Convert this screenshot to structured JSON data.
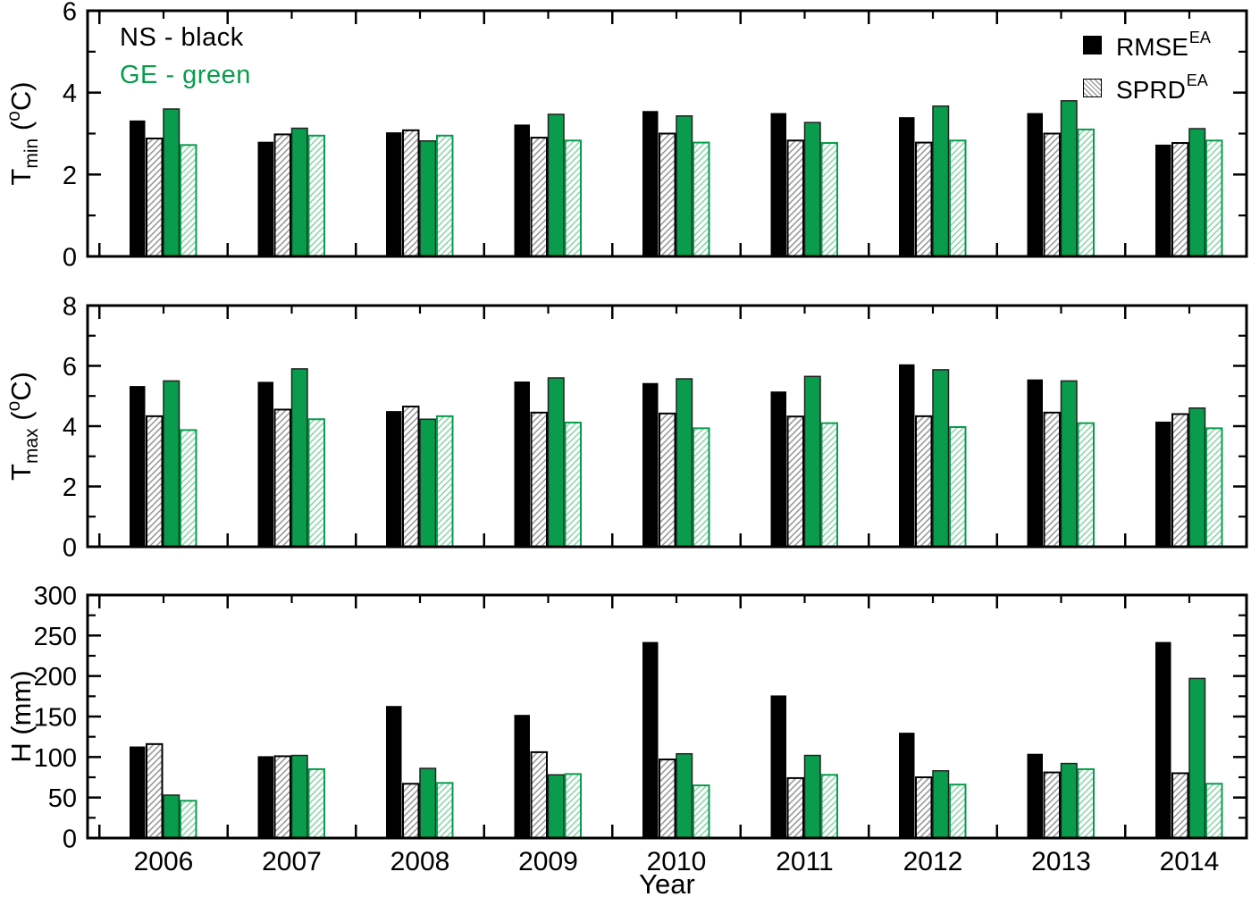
{
  "figure": {
    "background": "#ffffff"
  },
  "annotations": [
    {
      "id": "ns",
      "text": "NS - black",
      "color": "#000000"
    },
    {
      "id": "ge",
      "text": "GE - green",
      "color": "#089c4c"
    }
  ],
  "legend": {
    "position": "top-right",
    "entries": [
      {
        "label": "RMSE",
        "superscript": "EA",
        "swatch": "black-solid-square"
      },
      {
        "label": "SPRD",
        "superscript": "EA",
        "swatch": "hatched-square"
      }
    ]
  },
  "xlabel": "Year",
  "colors": {
    "ns_solid": "#000000",
    "ge_solid": "#089c4c",
    "ns_hatch_line": "#9a9a9a",
    "ge_hatch_line": "#8fd4ad",
    "axis": "#000000"
  },
  "chart_data": [
    {
      "type": "bar",
      "panel": "Tmin",
      "ylabel_parts": [
        {
          "text": "T"
        },
        {
          "text": "min",
          "script": "sub"
        },
        {
          "text": " ("
        },
        {
          "text": "o",
          "script": "sup"
        },
        {
          "text": "C)"
        }
      ],
      "ylim": [
        0,
        6
      ],
      "yticks": [
        0,
        2,
        4,
        6
      ],
      "y_minor_step": 1,
      "grid": false,
      "categories": [
        "2006",
        "2007",
        "2008",
        "2009",
        "2010",
        "2011",
        "2012",
        "2013",
        "2014"
      ],
      "series": [
        {
          "name": "NS RMSE EA",
          "style": "ns-solid",
          "values": [
            3.32,
            2.8,
            3.03,
            3.22,
            3.55,
            3.5,
            3.4,
            3.5,
            2.73
          ]
        },
        {
          "name": "NS SPRD EA",
          "style": "ns-hatch",
          "values": [
            2.88,
            2.98,
            3.08,
            2.9,
            3.0,
            2.83,
            2.78,
            3.0,
            2.77
          ]
        },
        {
          "name": "GE RMSE EA",
          "style": "ge-solid",
          "values": [
            3.6,
            3.13,
            2.82,
            3.47,
            3.43,
            3.27,
            3.67,
            3.8,
            3.12
          ]
        },
        {
          "name": "GE SPRD EA",
          "style": "ge-hatch",
          "values": [
            2.72,
            2.95,
            2.95,
            2.83,
            2.78,
            2.77,
            2.83,
            3.1,
            2.83
          ]
        }
      ]
    },
    {
      "type": "bar",
      "panel": "Tmax",
      "ylabel_parts": [
        {
          "text": "T"
        },
        {
          "text": "max",
          "script": "sub"
        },
        {
          "text": " ("
        },
        {
          "text": "o",
          "script": "sup"
        },
        {
          "text": "C)"
        }
      ],
      "ylim": [
        0,
        8
      ],
      "yticks": [
        0,
        2,
        4,
        6,
        8
      ],
      "y_minor_step": 1,
      "grid": false,
      "categories": [
        "2006",
        "2007",
        "2008",
        "2009",
        "2010",
        "2011",
        "2012",
        "2013",
        "2014"
      ],
      "series": [
        {
          "name": "NS RMSE EA",
          "style": "ns-solid",
          "values": [
            5.33,
            5.47,
            4.5,
            5.48,
            5.43,
            5.15,
            6.05,
            5.55,
            4.15
          ]
        },
        {
          "name": "NS SPRD EA",
          "style": "ns-hatch",
          "values": [
            4.33,
            4.55,
            4.65,
            4.45,
            4.42,
            4.32,
            4.33,
            4.45,
            4.4
          ]
        },
        {
          "name": "GE RMSE EA",
          "style": "ge-solid",
          "values": [
            5.5,
            5.9,
            4.23,
            5.6,
            5.57,
            5.65,
            5.87,
            5.5,
            4.6
          ]
        },
        {
          "name": "GE SPRD EA",
          "style": "ge-hatch",
          "values": [
            3.87,
            4.23,
            4.33,
            4.12,
            3.93,
            4.1,
            3.97,
            4.1,
            3.93
          ]
        }
      ]
    },
    {
      "type": "bar",
      "panel": "H",
      "ylabel_parts": [
        {
          "text": "H (mm)"
        }
      ],
      "ylim": [
        0,
        300
      ],
      "yticks": [
        0,
        50,
        100,
        150,
        200,
        250,
        300
      ],
      "y_minor_step": 25,
      "grid": false,
      "xlabel": "Year",
      "categories": [
        "2006",
        "2007",
        "2008",
        "2009",
        "2010",
        "2011",
        "2012",
        "2013",
        "2014"
      ],
      "series": [
        {
          "name": "NS RMSE EA",
          "style": "ns-solid",
          "values": [
            113,
            101,
            163,
            152,
            242,
            176,
            130,
            104,
            242
          ]
        },
        {
          "name": "NS SPRD EA",
          "style": "ns-hatch",
          "values": [
            116,
            101,
            67,
            106,
            97,
            74,
            75,
            81,
            80
          ]
        },
        {
          "name": "GE RMSE EA",
          "style": "ge-solid",
          "values": [
            53,
            102,
            86,
            78,
            104,
            102,
            83,
            92,
            197
          ]
        },
        {
          "name": "GE SPRD EA",
          "style": "ge-hatch",
          "values": [
            46,
            85,
            68,
            79,
            65,
            78,
            66,
            85,
            67
          ]
        }
      ]
    }
  ]
}
